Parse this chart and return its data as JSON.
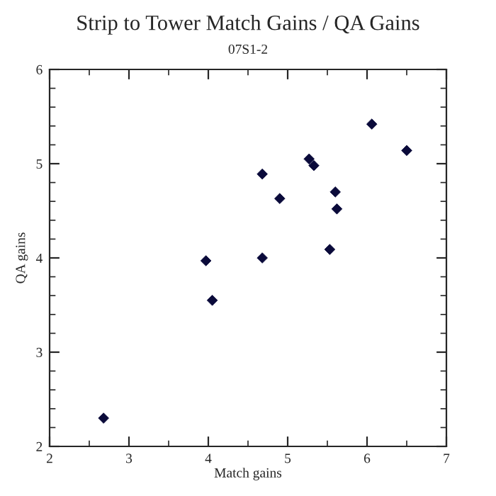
{
  "chart_data": {
    "type": "scatter",
    "title": "Strip to Tower Match Gains / QA Gains",
    "subtitle": "07S1-2",
    "xlabel": "Match gains",
    "ylabel": "QA gains",
    "x": [
      2.68,
      3.97,
      4.05,
      4.68,
      4.68,
      4.9,
      5.27,
      5.33,
      5.53,
      5.6,
      5.62,
      6.06,
      6.5
    ],
    "series": [
      {
        "color": "#0a0a3a",
        "values": [
          2.3,
          3.97,
          3.55,
          4.89,
          4.0,
          4.63,
          5.05,
          4.98,
          4.09,
          4.7,
          4.52,
          5.42,
          5.14
        ]
      }
    ],
    "xlim": [
      2,
      7
    ],
    "ylim": [
      2,
      6
    ],
    "xticks": [
      2,
      3,
      4,
      5,
      6,
      7
    ],
    "yticks": [
      2,
      3,
      4,
      5,
      6
    ],
    "marker": "diamond",
    "grid": false,
    "legend": false
  }
}
